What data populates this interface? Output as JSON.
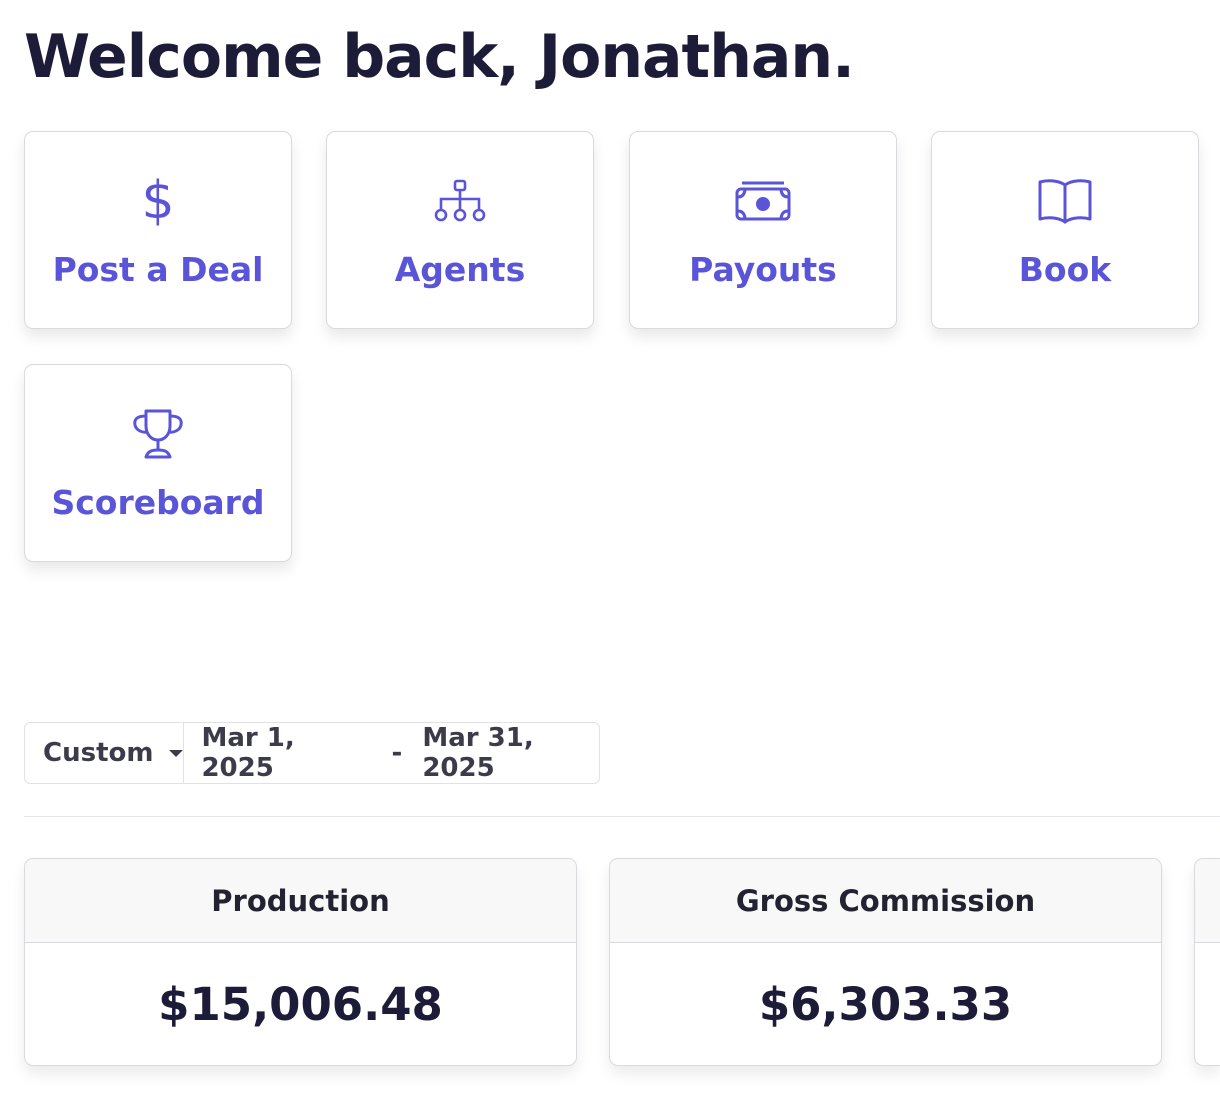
{
  "header": {
    "welcome": "Welcome back, Jonathan."
  },
  "quick_actions": [
    {
      "label": "Post a Deal",
      "icon": "dollar-icon"
    },
    {
      "label": "Agents",
      "icon": "org-chart-icon"
    },
    {
      "label": "Payouts",
      "icon": "cash-icon"
    },
    {
      "label": "Book",
      "icon": "book-icon"
    },
    {
      "label": "Scoreboard",
      "icon": "trophy-icon"
    }
  ],
  "filter": {
    "range_label": "Custom",
    "start_date": "Mar 1, 2025",
    "separator": "-",
    "end_date": "Mar 31, 2025"
  },
  "stats": [
    {
      "title": "Production",
      "value": "$15,006.48"
    },
    {
      "title": "Gross Commission",
      "value": "$6,303.33"
    }
  ],
  "colors": {
    "accent": "#5a55d8",
    "heading": "#1c1c38",
    "border": "#d9d9de"
  }
}
